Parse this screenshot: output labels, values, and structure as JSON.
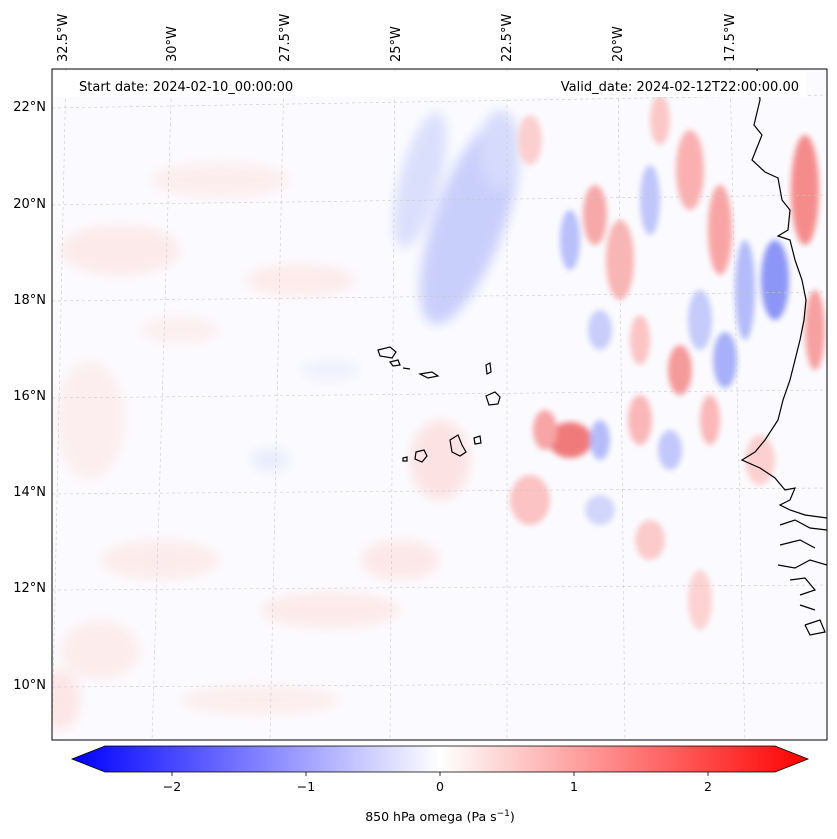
{
  "map": {
    "start_label": "Start date: 2024-02-10_00:00:00",
    "valid_label": "Valid_date: 2024-02-12T22:00:00.00",
    "lon_labels": [
      "32.5°W",
      "30°W",
      "27.5°W",
      "25°W",
      "22.5°W",
      "20°W",
      "17.5°W"
    ],
    "lat_labels": [
      "22°N",
      "20°N",
      "18°N",
      "16°N",
      "14°N",
      "12°N",
      "10°N"
    ]
  },
  "colorbar": {
    "label": "850 hPa omega (Pa s",
    "label_sup": "−1",
    "label_close": ")",
    "ticks": [
      "−2",
      "−1",
      "0",
      "1",
      "2"
    ],
    "range": [
      -2.6,
      2.6
    ],
    "colors": {
      "negative": "#0000ff",
      "zero": "#ffffff",
      "positive": "#ff0000"
    }
  }
}
